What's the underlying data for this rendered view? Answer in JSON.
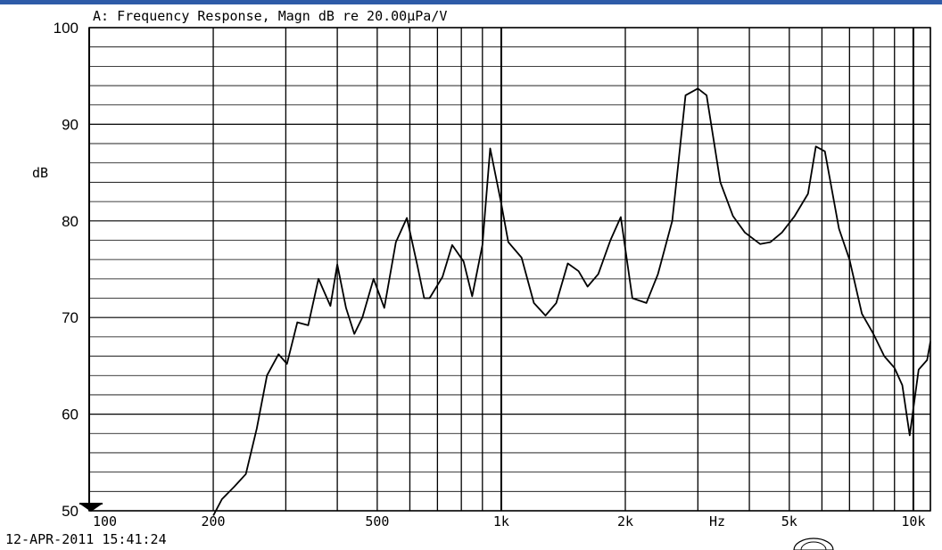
{
  "chart_data": {
    "type": "line",
    "title": "A: Frequency Response, Magn dB re 20.00µPa/V",
    "ylabel": "dB",
    "x_unit_label": "Hz",
    "x_scale": "log",
    "xlim": [
      100,
      11000
    ],
    "ylim": [
      50,
      100
    ],
    "y_ticks": [
      50,
      60,
      70,
      80,
      90,
      100
    ],
    "x_tick_labels": [
      {
        "value": 100,
        "label": "100"
      },
      {
        "value": 200,
        "label": "200"
      },
      {
        "value": 500,
        "label": "500"
      },
      {
        "value": 1000,
        "label": "1k"
      },
      {
        "value": 2000,
        "label": "2k"
      },
      {
        "value": 5000,
        "label": "5k"
      },
      {
        "value": 10000,
        "label": "10k"
      }
    ],
    "grid": true,
    "series": [
      {
        "color": "#000000",
        "points": [
          [
            200,
            49.5
          ],
          [
            210,
            51.2
          ],
          [
            225,
            52.5
          ],
          [
            240,
            53.8
          ],
          [
            255,
            58.5
          ],
          [
            270,
            64.0
          ],
          [
            288,
            66.2
          ],
          [
            302,
            65.2
          ],
          [
            320,
            69.5
          ],
          [
            340,
            69.2
          ],
          [
            360,
            74.0
          ],
          [
            385,
            71.2
          ],
          [
            400,
            75.5
          ],
          [
            420,
            71.0
          ],
          [
            440,
            68.3
          ],
          [
            460,
            70.0
          ],
          [
            490,
            74.0
          ],
          [
            520,
            71.0
          ],
          [
            555,
            77.8
          ],
          [
            590,
            80.3
          ],
          [
            625,
            75.5
          ],
          [
            650,
            72.0
          ],
          [
            670,
            72.0
          ],
          [
            720,
            74.2
          ],
          [
            760,
            77.5
          ],
          [
            810,
            75.8
          ],
          [
            850,
            72.2
          ],
          [
            900,
            77.5
          ],
          [
            940,
            87.5
          ],
          [
            1000,
            81.8
          ],
          [
            1040,
            77.8
          ],
          [
            1120,
            76.2
          ],
          [
            1200,
            71.5
          ],
          [
            1280,
            70.2
          ],
          [
            1360,
            71.5
          ],
          [
            1450,
            75.6
          ],
          [
            1540,
            74.8
          ],
          [
            1620,
            73.2
          ],
          [
            1720,
            74.5
          ],
          [
            1840,
            78.0
          ],
          [
            1950,
            80.4
          ],
          [
            2080,
            72.0
          ],
          [
            2250,
            71.5
          ],
          [
            2400,
            74.5
          ],
          [
            2600,
            80.0
          ],
          [
            2800,
            93.0
          ],
          [
            3000,
            93.7
          ],
          [
            3150,
            93.0
          ],
          [
            3400,
            84.0
          ],
          [
            3650,
            80.5
          ],
          [
            3900,
            78.8
          ],
          [
            4250,
            77.6
          ],
          [
            4500,
            77.8
          ],
          [
            4800,
            78.8
          ],
          [
            5150,
            80.5
          ],
          [
            5550,
            82.8
          ],
          [
            5800,
            87.7
          ],
          [
            6100,
            87.2
          ],
          [
            6600,
            79.2
          ],
          [
            7000,
            76.0
          ],
          [
            7500,
            70.4
          ],
          [
            8000,
            68.3
          ],
          [
            8500,
            66.0
          ],
          [
            9000,
            64.8
          ],
          [
            9400,
            63.0
          ],
          [
            9800,
            57.8
          ],
          [
            10300,
            64.6
          ],
          [
            10800,
            65.6
          ],
          [
            11000,
            67.5
          ]
        ]
      }
    ]
  },
  "footer": {
    "timestamp": "12-APR-2011  15:41:24"
  }
}
